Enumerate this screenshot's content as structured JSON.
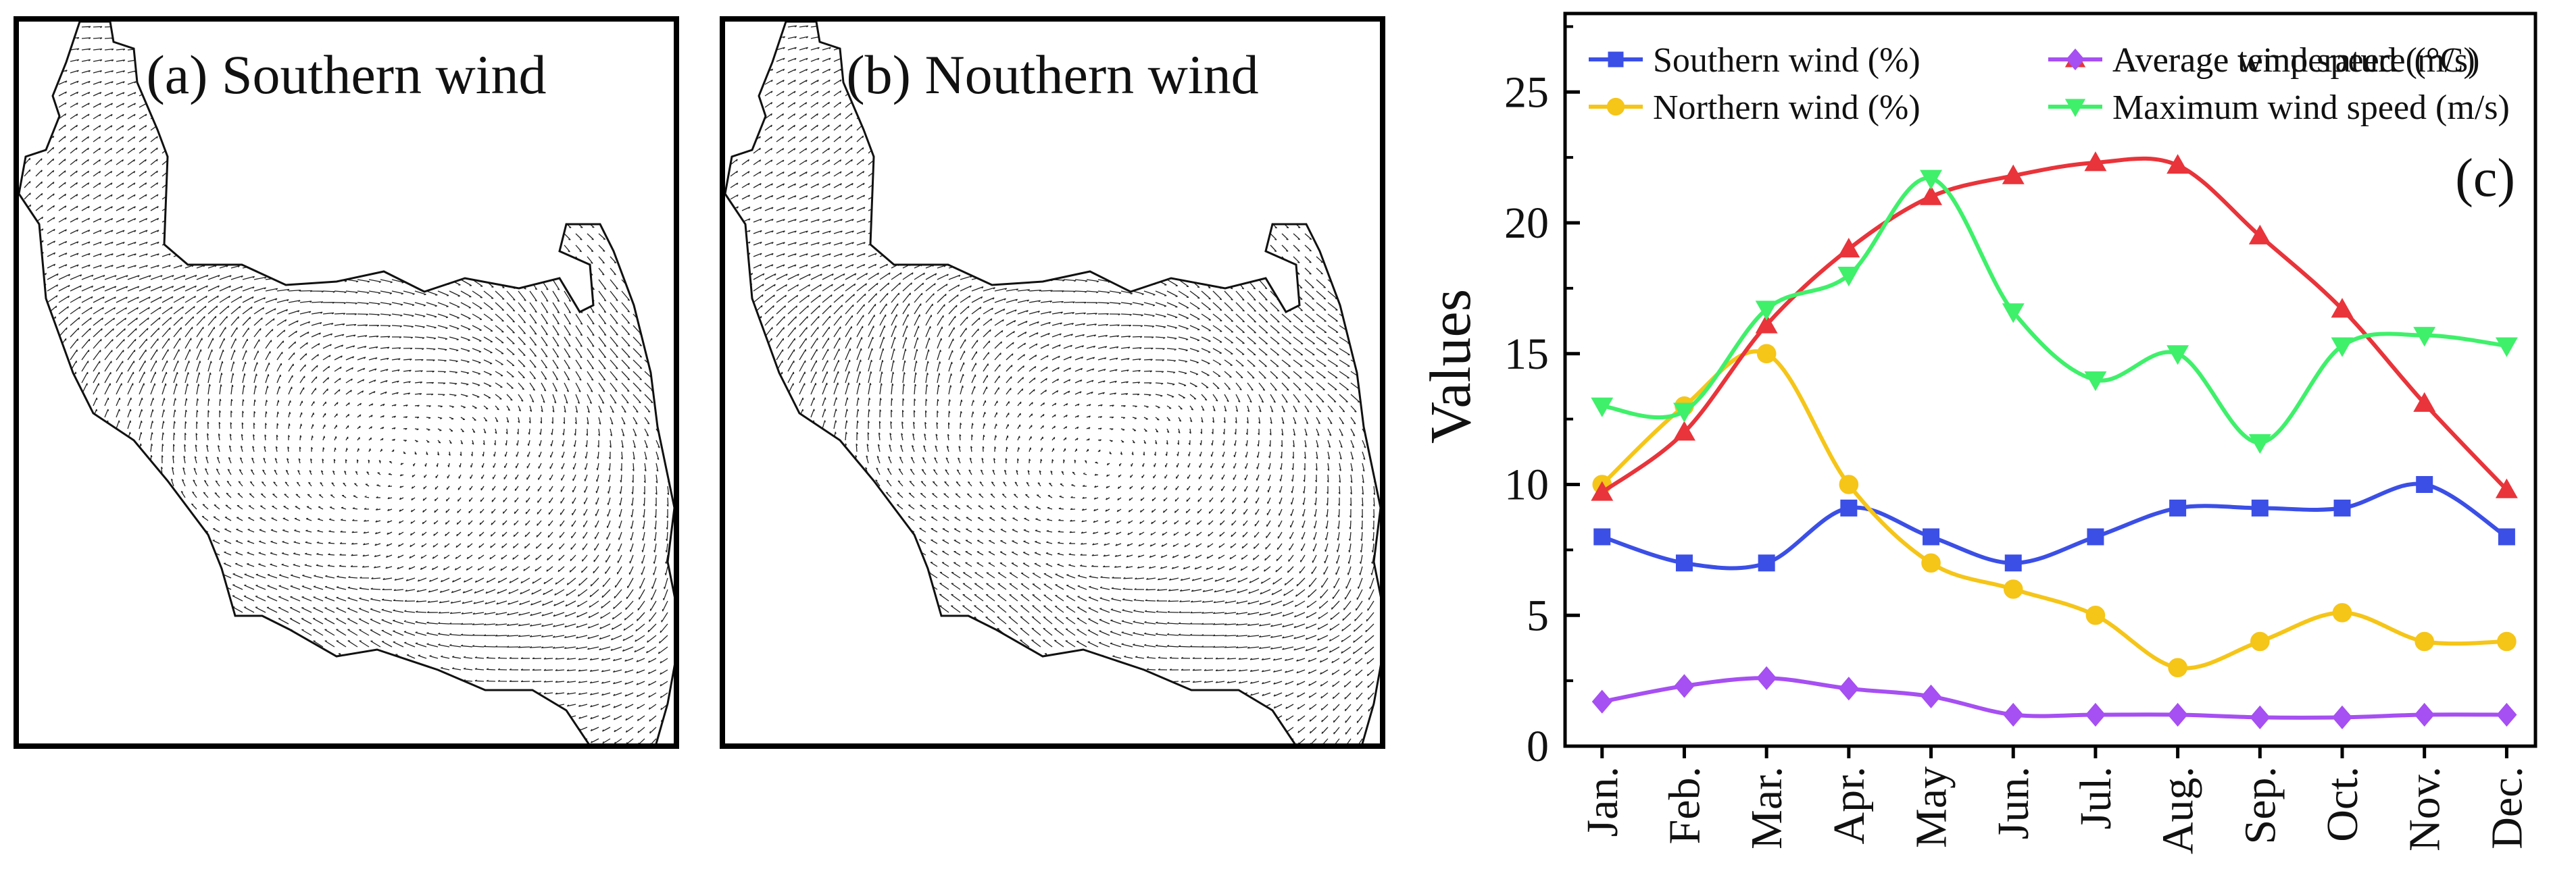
{
  "panels": {
    "a": {
      "label": "(a) Southern wind"
    },
    "b": {
      "label": "(b) Nouthern wind"
    }
  },
  "chart_data": {
    "type": "line",
    "panel_tag": "(c)",
    "title": "",
    "xlabel": "",
    "ylabel": "Values",
    "ylim": [
      0,
      28
    ],
    "yticks": [
      0,
      5,
      10,
      15,
      20,
      25
    ],
    "categories": [
      "Jan.",
      "Feb.",
      "Mar.",
      "Apr.",
      "May",
      "Jun.",
      "Jul.",
      "Aug.",
      "Sep.",
      "Oct.",
      "Nov.",
      "Dec."
    ],
    "legend_position": "top",
    "series": [
      {
        "name": "Southern wind (%)",
        "color": "#3b4fe6",
        "marker": "square",
        "values": [
          8,
          7,
          7,
          9.1,
          8,
          7,
          8,
          9.1,
          9.1,
          9.1,
          10,
          8
        ]
      },
      {
        "name": "Northern wind (%)",
        "color": "#f5c518",
        "marker": "circle",
        "values": [
          10,
          13,
          15,
          10,
          7,
          6,
          5,
          3,
          4,
          5.1,
          4,
          4
        ]
      },
      {
        "name": "Average temperature (°C)",
        "color": "#e8343a",
        "marker": "triangle-up",
        "values": [
          9.7,
          12,
          16.1,
          19,
          21,
          21.8,
          22.3,
          22.2,
          19.5,
          16.7,
          13.1,
          9.8
        ]
      },
      {
        "name": "Maximum wind speed (m/s)",
        "color": "#3ff06a",
        "marker": "triangle-down",
        "values": [
          13,
          12.8,
          16.7,
          18,
          21.7,
          16.6,
          14,
          15,
          11.6,
          15.3,
          15.7,
          15.3
        ]
      },
      {
        "name": "Average wind speed (m/s)",
        "color": "#a64ff2",
        "marker": "diamond",
        "values": [
          1.7,
          2.3,
          2.6,
          2.2,
          1.9,
          1.2,
          1.2,
          1.2,
          1.1,
          1.1,
          1.2,
          1.2
        ]
      }
    ]
  }
}
